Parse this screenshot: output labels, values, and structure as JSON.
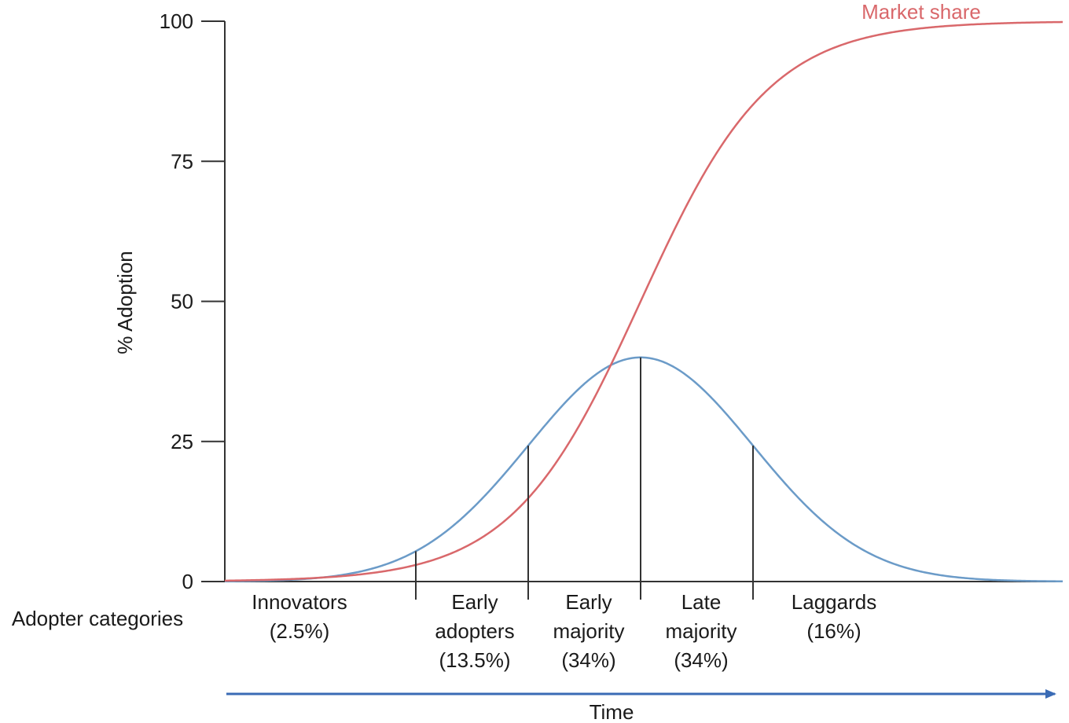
{
  "chart_data": {
    "type": "line",
    "title": "",
    "ylabel": "% Adoption",
    "xlabel": "Time",
    "ylim": [
      0,
      100
    ],
    "yticks": [
      "0",
      "25",
      "50",
      "75",
      "100"
    ],
    "grid": false,
    "colors": {
      "market_share": "#d9686b",
      "adoption": "#6b9bc8",
      "time_arrow": "#3a6bb5",
      "axis": "#333333"
    },
    "market_share": {
      "name": "Market share",
      "label": "Market share"
    },
    "adoption_curve": {
      "peak_value": 40
    },
    "categories_heading": "Adopter categories",
    "categories": [
      {
        "lines": [
          "Innovators",
          "(2.5%)"
        ]
      },
      {
        "lines": [
          "Early",
          "adopters",
          "(13.5%)"
        ]
      },
      {
        "lines": [
          "Early",
          "majority",
          "(34%)"
        ]
      },
      {
        "lines": [
          "Late",
          "majority",
          "(34%)"
        ]
      },
      {
        "lines": [
          "Laggards",
          "(16%)"
        ]
      }
    ]
  }
}
